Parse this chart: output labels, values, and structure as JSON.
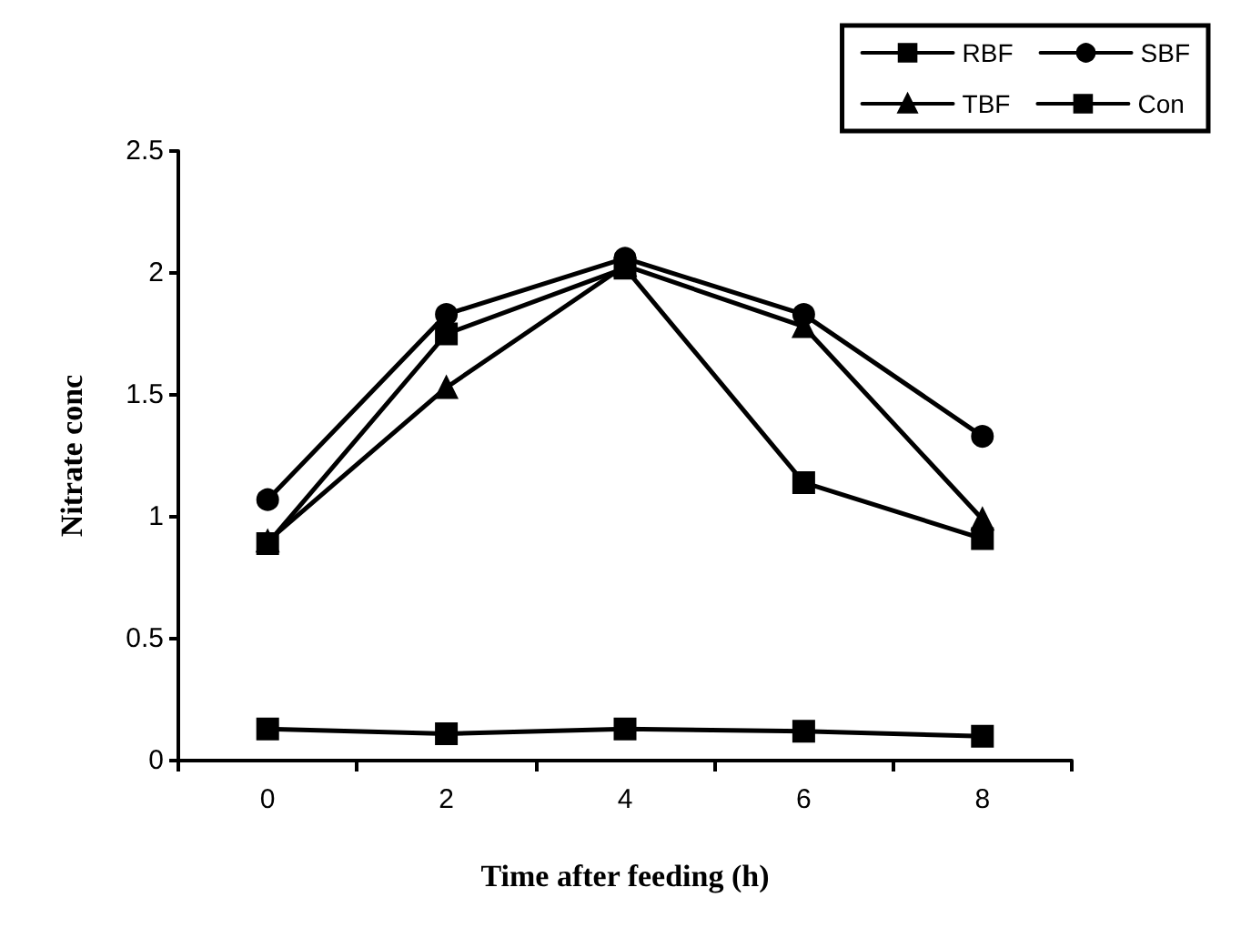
{
  "chart_data": {
    "type": "line",
    "xlabel": "Time after feeding (h)",
    "ylabel": "Nitrate conc",
    "categories": [
      "0",
      "2",
      "4",
      "6",
      "8"
    ],
    "series": [
      {
        "name": "RBF",
        "color": "#000000",
        "marker": "square",
        "values": [
          0.89,
          1.75,
          2.02,
          1.14,
          0.91
        ]
      },
      {
        "name": "SBF",
        "color": "#000000",
        "marker": "circle",
        "values": [
          1.07,
          1.83,
          2.06,
          1.83,
          1.33
        ]
      },
      {
        "name": "TBF",
        "color": "#000000",
        "marker": "triangle",
        "values": [
          0.9,
          1.53,
          2.03,
          1.78,
          0.99
        ]
      },
      {
        "name": "Con",
        "color": "#000000",
        "marker": "square",
        "values": [
          0.13,
          0.11,
          0.13,
          0.12,
          0.1
        ]
      }
    ],
    "ylim": [
      0,
      2.5
    ],
    "yticks": [
      0,
      0.5,
      1,
      1.5,
      2,
      2.5
    ],
    "grid": false,
    "legend": "top right"
  }
}
